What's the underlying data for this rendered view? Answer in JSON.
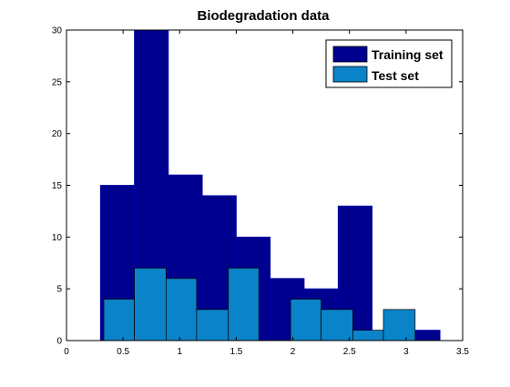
{
  "chart_data": {
    "type": "bar",
    "title": "Biodegradation data",
    "xlabel": "",
    "ylabel": "",
    "xlim": [
      0,
      3.5
    ],
    "ylim": [
      0,
      30
    ],
    "xticks": [
      "0",
      "0.5",
      "1",
      "1.5",
      "2",
      "2.5",
      "3",
      "3.5"
    ],
    "yticks": [
      "0",
      "5",
      "10",
      "15",
      "20",
      "25",
      "30"
    ],
    "grid": false,
    "legend_position": "top-right",
    "series": [
      {
        "name": "Training set",
        "color": "#00008f",
        "bins": [
          {
            "x0": 0.3,
            "x1": 0.6,
            "value": 15
          },
          {
            "x0": 0.6,
            "x1": 0.9,
            "value": 30
          },
          {
            "x0": 0.9,
            "x1": 1.2,
            "value": 16
          },
          {
            "x0": 1.2,
            "x1": 1.5,
            "value": 14
          },
          {
            "x0": 1.5,
            "x1": 1.8,
            "value": 10
          },
          {
            "x0": 1.8,
            "x1": 2.1,
            "value": 6
          },
          {
            "x0": 2.1,
            "x1": 2.4,
            "value": 5
          },
          {
            "x0": 2.4,
            "x1": 2.7,
            "value": 13
          },
          {
            "x0": 2.7,
            "x1": 3.0,
            "value": 0
          },
          {
            "x0": 3.0,
            "x1": 3.3,
            "value": 1
          }
        ]
      },
      {
        "name": "Test set",
        "color": "#0a83c8",
        "bins": [
          {
            "x0": 0.33,
            "x1": 0.6,
            "value": 4
          },
          {
            "x0": 0.6,
            "x1": 0.88,
            "value": 7
          },
          {
            "x0": 0.88,
            "x1": 1.15,
            "value": 6
          },
          {
            "x0": 1.15,
            "x1": 1.43,
            "value": 3
          },
          {
            "x0": 1.43,
            "x1": 1.7,
            "value": 7
          },
          {
            "x0": 1.7,
            "x1": 1.98,
            "value": 0
          },
          {
            "x0": 1.98,
            "x1": 2.25,
            "value": 4
          },
          {
            "x0": 2.25,
            "x1": 2.53,
            "value": 3
          },
          {
            "x0": 2.53,
            "x1": 2.8,
            "value": 1
          },
          {
            "x0": 2.8,
            "x1": 3.08,
            "value": 3
          }
        ]
      }
    ]
  }
}
